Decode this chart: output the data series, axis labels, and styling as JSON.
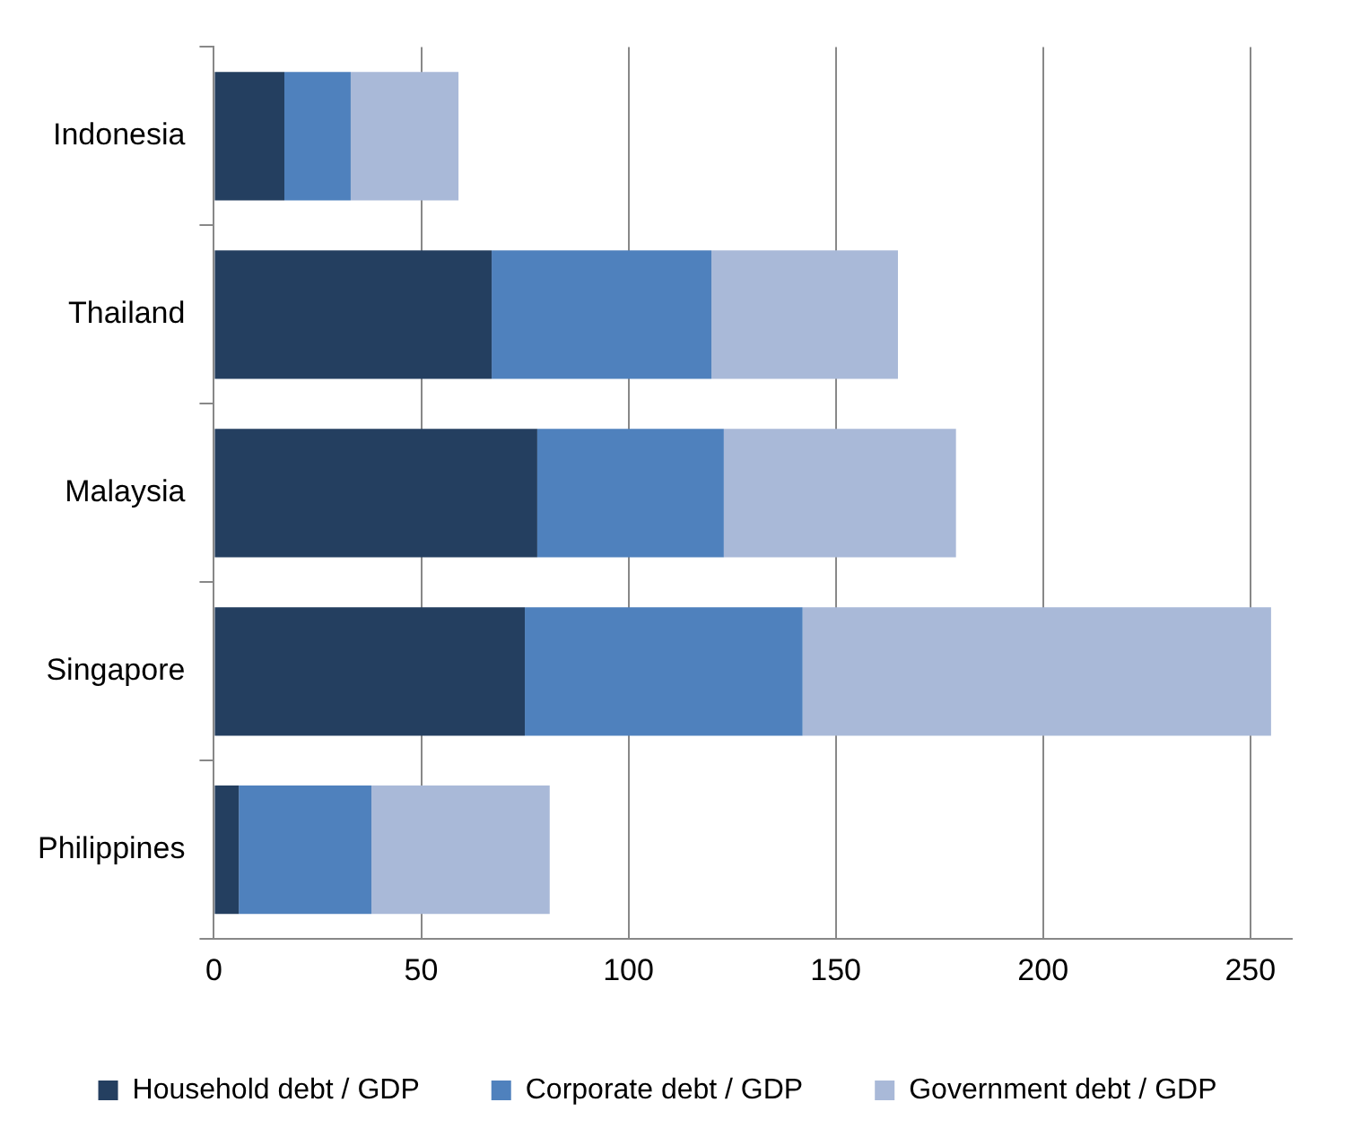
{
  "chart_data": {
    "type": "bar",
    "orientation": "horizontal",
    "stacked": true,
    "categories": [
      "Indonesia",
      "Thailand",
      "Malaysia",
      "Singapore",
      "Philippines"
    ],
    "series": [
      {
        "name": "Household debt / GDP",
        "color": "#243f60",
        "values": [
          17,
          67,
          78,
          75,
          6
        ]
      },
      {
        "name": "Corporate debt / GDP",
        "color": "#4f81bd",
        "values": [
          16,
          53,
          45,
          67,
          32
        ]
      },
      {
        "name": "Government debt / GDP",
        "color": "#a9b9d8",
        "values": [
          26,
          45,
          56,
          113,
          43
        ]
      }
    ],
    "xlim": [
      0,
      260
    ],
    "xticks": [
      0,
      50,
      100,
      150,
      200,
      250
    ],
    "grid": "x",
    "legend": "bottom"
  }
}
